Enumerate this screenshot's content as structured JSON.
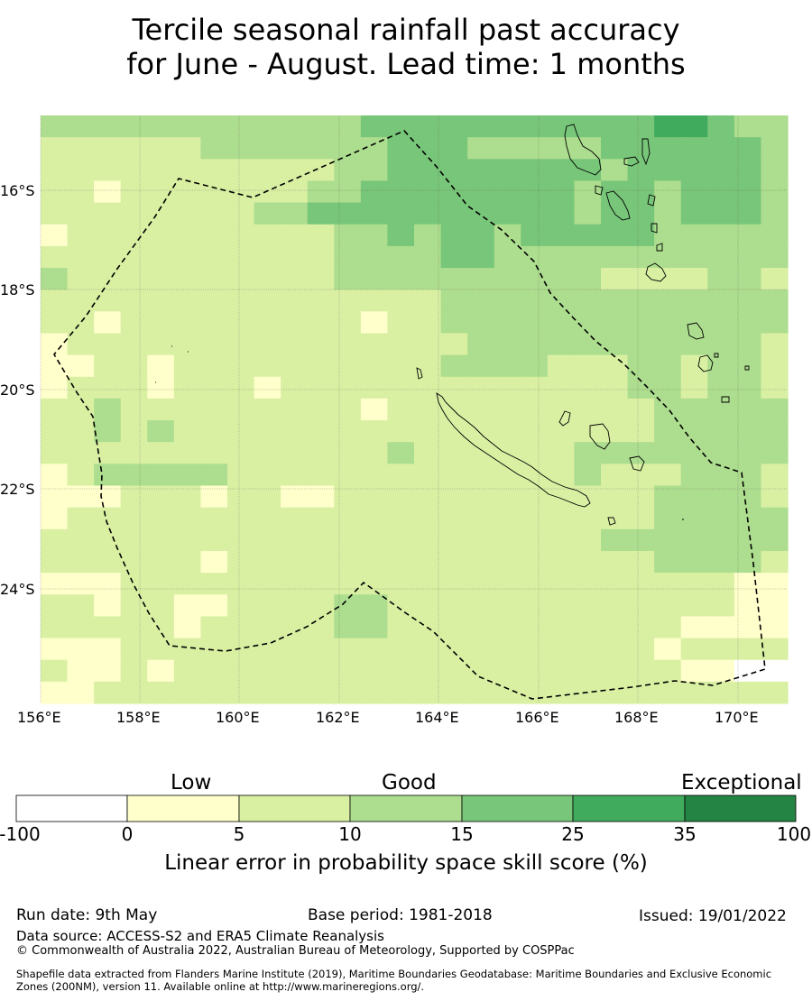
{
  "title": {
    "line1": "Tercile seasonal rainfall past accuracy",
    "line2": "for June - August. Lead time: 1 months"
  },
  "map": {
    "lon_labels": [
      "156°E",
      "158°E",
      "160°E",
      "162°E",
      "164°E",
      "166°E",
      "168°E",
      "170°E"
    ],
    "lat_labels": [
      "16°S",
      "18°S",
      "20°S",
      "22°S",
      "24°S"
    ],
    "lon_range": [
      156,
      171
    ],
    "lat_range": [
      -14.3,
      -26.1
    ],
    "grid_lon_start": 156.0,
    "grid_lat_start": -14.3,
    "grid_cell_deg_lon": 0.833,
    "grid_cell_deg_lat": 0.556,
    "skill_class_grid": [
      "3333333333334444444444455433",
      "2222223333333444333334444443",
      "2222222222233444444443444443",
      "2212222222334444444434434443",
      "2222222233444444444434434443",
      "1222222222233434434444433333",
      "2222222222233334433333333333",
      "3222222222233333333332222332",
      "2222222222222223333333333333",
      "2212222222221223333333333333",
      "1222222222222222333333333332",
      "1122122222222223333222332332",
      "1222122212222222222222332332",
      "2232222222221222222222233333",
      "2232322222222222222222233333",
      "2222222222222322222233333333",
      "1233333222222222222232223332",
      "1112221221122222222222233332",
      "1222222222222222222222233333",
      "2222222222222222222223333333",
      "2222221222222222222222233332",
      "1112222222222222222222222211",
      "2212211222233222222222222211",
      "2222212222233222222222221111",
      "1112222222222222222222212222",
      "2112122222222222222222221100",
      "1122222222222222222222222222"
    ]
  },
  "colorbar": {
    "categories": [
      "Low",
      "Good",
      "Exceptional"
    ],
    "ticks": [
      "-100",
      "0",
      "5",
      "10",
      "15",
      "25",
      "35",
      "100"
    ],
    "colors": [
      "#ffffff",
      "#ffffcc",
      "#d9f0a3",
      "#addd8e",
      "#78c679",
      "#41ab5d",
      "#238443"
    ],
    "label": "Linear error in probability space skill score (%)"
  },
  "footer": {
    "run_date": "Run date: 9th May",
    "base_period": "Base period: 1981-2018",
    "issued": "Issued: 19/01/2022",
    "data_source": "Data source: ACCESS-S2 and ERA5 Climate Reanalysis",
    "copyright": "© Commonwealth of Australia 2022, Australian Bureau of Meteorology, Supported by COSPPac",
    "shapefile_line1": "Shapefile data extracted from Flanders Marine Institute (2019), Maritime Boundaries Geodatabase: Maritime Boundaries and Exclusive Economic",
    "shapefile_line2": "Zones (200NM), version 11. Available online at http://www.marineregions.org/."
  }
}
